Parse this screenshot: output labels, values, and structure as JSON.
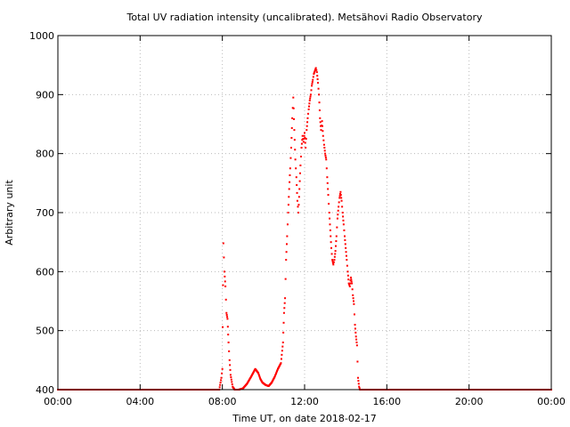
{
  "chart_data": {
    "type": "scatter",
    "title": "Total UV radiation intensity (uncalibrated). Metsähovi Radio Observatory",
    "xlabel": "Time UT, on date 2018-02-17",
    "ylabel": "Arbitrary unit",
    "xlim": [
      "00:00",
      "24:00"
    ],
    "ylim": [
      400,
      1000
    ],
    "x_ticks": [
      "00:00",
      "04:00",
      "08:00",
      "12:00",
      "16:00",
      "20:00",
      "00:00"
    ],
    "y_ticks": [
      "400",
      "500",
      "600",
      "700",
      "800",
      "900",
      "1000"
    ],
    "grid": true,
    "point_color": "#ff0000",
    "series": [
      {
        "x_unit": "hours UT",
        "points": [
          [
            0.0,
            400
          ],
          [
            7.85,
            400
          ],
          [
            7.95,
            420
          ],
          [
            8.0,
            435
          ],
          [
            8.05,
            648
          ],
          [
            8.1,
            600
          ],
          [
            8.15,
            575
          ],
          [
            8.2,
            530
          ],
          [
            8.25,
            520
          ],
          [
            8.3,
            480
          ],
          [
            8.35,
            450
          ],
          [
            8.4,
            425
          ],
          [
            8.5,
            405
          ],
          [
            8.6,
            400
          ],
          [
            8.8,
            400
          ],
          [
            9.0,
            402
          ],
          [
            9.2,
            410
          ],
          [
            9.4,
            422
          ],
          [
            9.6,
            435
          ],
          [
            9.75,
            428
          ],
          [
            9.85,
            418
          ],
          [
            9.95,
            412
          ],
          [
            10.1,
            408
          ],
          [
            10.25,
            406
          ],
          [
            10.4,
            412
          ],
          [
            10.55,
            422
          ],
          [
            10.7,
            435
          ],
          [
            10.85,
            445
          ],
          [
            10.95,
            480
          ],
          [
            11.0,
            530
          ],
          [
            11.05,
            555
          ],
          [
            11.1,
            620
          ],
          [
            11.15,
            660
          ],
          [
            11.2,
            700
          ],
          [
            11.25,
            740
          ],
          [
            11.3,
            775
          ],
          [
            11.35,
            810
          ],
          [
            11.4,
            860
          ],
          [
            11.45,
            895
          ],
          [
            11.5,
            840
          ],
          [
            11.55,
            790
          ],
          [
            11.6,
            760
          ],
          [
            11.65,
            720
          ],
          [
            11.7,
            700
          ],
          [
            11.75,
            740
          ],
          [
            11.8,
            780
          ],
          [
            11.85,
            810
          ],
          [
            11.9,
            830
          ],
          [
            11.95,
            820
          ],
          [
            12.0,
            835
          ],
          [
            12.05,
            810
          ],
          [
            12.1,
            840
          ],
          [
            12.15,
            860
          ],
          [
            12.2,
            875
          ],
          [
            12.25,
            890
          ],
          [
            12.3,
            900
          ],
          [
            12.35,
            915
          ],
          [
            12.4,
            925
          ],
          [
            12.45,
            935
          ],
          [
            12.5,
            940
          ],
          [
            12.55,
            945
          ],
          [
            12.6,
            938
          ],
          [
            12.65,
            920
          ],
          [
            12.7,
            900
          ],
          [
            12.75,
            860
          ],
          [
            12.8,
            840
          ],
          [
            12.85,
            855
          ],
          [
            12.9,
            830
          ],
          [
            12.95,
            815
          ],
          [
            13.0,
            800
          ],
          [
            13.05,
            790
          ],
          [
            13.1,
            760
          ],
          [
            13.15,
            730
          ],
          [
            13.2,
            700
          ],
          [
            13.25,
            670
          ],
          [
            13.3,
            640
          ],
          [
            13.35,
            620
          ],
          [
            13.4,
            612
          ],
          [
            13.45,
            620
          ],
          [
            13.5,
            635
          ],
          [
            13.55,
            660
          ],
          [
            13.6,
            690
          ],
          [
            13.65,
            710
          ],
          [
            13.7,
            725
          ],
          [
            13.75,
            735
          ],
          [
            13.8,
            720
          ],
          [
            13.85,
            700
          ],
          [
            13.9,
            680
          ],
          [
            13.95,
            660
          ],
          [
            14.0,
            640
          ],
          [
            14.05,
            620
          ],
          [
            14.1,
            600
          ],
          [
            14.15,
            580
          ],
          [
            14.2,
            575
          ],
          [
            14.25,
            590
          ],
          [
            14.3,
            580
          ],
          [
            14.35,
            560
          ],
          [
            14.4,
            545
          ],
          [
            14.45,
            510
          ],
          [
            14.5,
            490
          ],
          [
            14.55,
            475
          ],
          [
            14.6,
            420
          ],
          [
            14.65,
            405
          ],
          [
            14.7,
            400
          ],
          [
            24.0,
            400
          ]
        ]
      }
    ]
  }
}
